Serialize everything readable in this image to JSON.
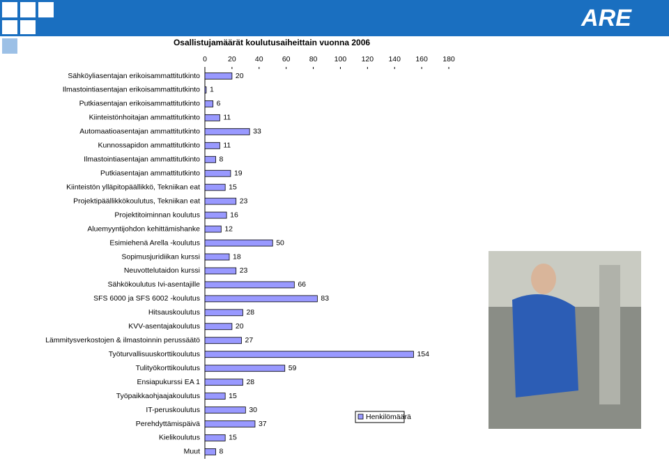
{
  "slide": {
    "logo": "ARE"
  },
  "chart_data": {
    "type": "bar",
    "orientation": "horizontal",
    "title": "Osallistujamäärät koulutusaiheittain vuonna 2006",
    "categories": [
      "Sähköyliasentajan erikoisammattitutkinto",
      "Ilmastointiasentajan erikoisammattitutkinto",
      "Putkiasentajan erikoisammattitutkinto",
      "Kiinteistönhoitajan ammattitutkinto",
      "Automaatioasentajan ammattitutkinto",
      "Kunnossapidon ammattitutkinto",
      "Ilmastointiasentajan ammattitutkinto",
      "Putkiasentajan ammattitutkinto",
      "Kiinteistön ylläpitopäällikkö, Tekniikan eat",
      "Projektipäällikkökoulutus, Tekniikan eat",
      "Projektitoiminnan koulutus",
      "Aluemyyntijohdon kehittämishanke",
      "Esimiehenä Arella -koulutus",
      "Sopimusjuridiikan kurssi",
      "Neuvottelutaidon kurssi",
      "Sähkökoulutus Ivi-asentajille",
      "SFS 6000 ja SFS 6002 -koulutus",
      "Hitsauskoulutus",
      "KVV-asentajakoulutus",
      "Lämmitysverkostojen & ilmastoinnin perussäätö",
      "Työturvallisuuskorttikoulutus",
      "Tulityökorttikoulutus",
      "Ensiapukurssi EA 1",
      "Työpaikkaohjaajakoulutus",
      "IT-peruskoulutus",
      "Perehdyttämispäivä",
      "Kielikoulutus",
      "Muut"
    ],
    "series": [
      {
        "name": "Henkilömäärä",
        "color": "#9999ff",
        "values": [
          20,
          1,
          6,
          11,
          33,
          11,
          8,
          19,
          15,
          23,
          16,
          12,
          50,
          18,
          23,
          66,
          83,
          28,
          20,
          27,
          154,
          59,
          28,
          15,
          30,
          37,
          15,
          8
        ]
      }
    ],
    "xlim": [
      0,
      180
    ],
    "xticks": [
      0,
      20,
      40,
      60,
      80,
      100,
      120,
      140,
      160,
      180
    ],
    "grid": false,
    "legend": "right"
  }
}
